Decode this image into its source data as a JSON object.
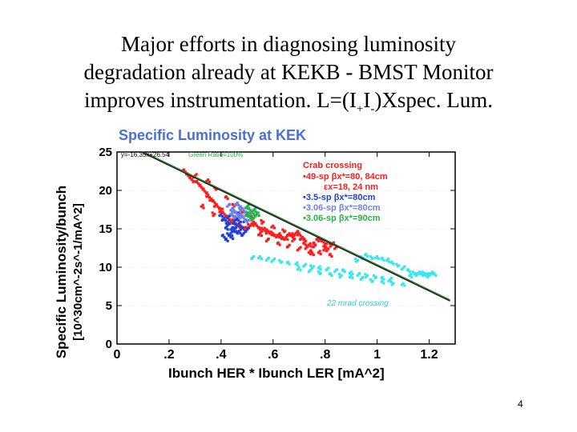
{
  "slide": {
    "title_line1": "Major efforts in diagnosing luminosity",
    "title_line2": "degradation already at KEKB - BMST Monitor",
    "title_line3_pre": "improves instrumentation. L=(I",
    "title_sub1": "+",
    "title_mid": "I",
    "title_sub2": "-",
    "title_line3_post": ")Xspec. Lum.",
    "page_number": "4"
  },
  "chart_data": {
    "type": "scatter",
    "title": "Specific Luminosity at KEK",
    "ylabel_line1": "Specific Luminosity/bunch",
    "ylabel_line2": "[10^30cm^-2s^-1/mA^2]",
    "xlabel": "Ibunch HER * Ibunch LER [mA^2]",
    "xlim": [
      0,
      1.3
    ],
    "ylim": [
      0,
      25
    ],
    "xticks": [
      "0",
      ".2",
      ".4",
      ".6",
      ".8",
      "1",
      "1.2"
    ],
    "xtick_values": [
      0,
      0.2,
      0.4,
      0.6,
      0.8,
      1.0,
      1.2
    ],
    "yticks": [
      "0",
      "5",
      "10",
      "15",
      "20",
      "25"
    ],
    "ytick_values": [
      0,
      5,
      10,
      15,
      20,
      25
    ],
    "fit": {
      "label": "y=-16.35x+26.54",
      "slope": -16.35,
      "intercept": 26.54,
      "x_range": [
        0.1,
        1.28
      ],
      "color": "#2e7d32"
    },
    "fit_ratio_label": "Green Ratio=100%",
    "legend": {
      "heading": "Crab crossing",
      "entries": [
        {
          "text": "•49-sp  βx*=80, 84cm",
          "color": "#ff1a1a"
        },
        {
          "text": "εx=18, 24 nm",
          "color": "#ff1a1a"
        },
        {
          "text": "•3.5-sp   βx*=80cm",
          "color": "#1f3fd9"
        },
        {
          "text": "•3.06-sp βx*=80cm",
          "color": "#6f7fe8"
        },
        {
          "text": "•3.06-sp βx*=90cm",
          "color": "#22b34a"
        }
      ]
    },
    "annotation": {
      "text": "22 mrad crossing",
      "color": "#33c8e0"
    },
    "series": [
      {
        "color": "#ff1a1a",
        "points": [
          [
            0.26,
            22.6
          ],
          [
            0.27,
            22.1
          ],
          [
            0.28,
            21.7
          ],
          [
            0.29,
            21.3
          ],
          [
            0.3,
            21.9
          ],
          [
            0.31,
            21.0
          ],
          [
            0.32,
            20.6
          ],
          [
            0.33,
            20.2
          ],
          [
            0.34,
            19.8
          ],
          [
            0.35,
            19.3
          ],
          [
            0.36,
            18.9
          ],
          [
            0.37,
            18.5
          ],
          [
            0.38,
            18.0
          ],
          [
            0.39,
            17.7
          ],
          [
            0.4,
            17.4
          ],
          [
            0.41,
            17.0
          ],
          [
            0.42,
            16.6
          ],
          [
            0.43,
            16.3
          ],
          [
            0.44,
            16.0
          ],
          [
            0.45,
            15.8
          ],
          [
            0.46,
            15.6
          ],
          [
            0.47,
            15.4
          ],
          [
            0.48,
            15.3
          ],
          [
            0.49,
            15.1
          ],
          [
            0.5,
            15.0
          ],
          [
            0.51,
            15.4
          ],
          [
            0.52,
            15.8
          ],
          [
            0.53,
            15.6
          ],
          [
            0.54,
            15.3
          ],
          [
            0.55,
            15.0
          ],
          [
            0.56,
            14.8
          ],
          [
            0.57,
            14.9
          ],
          [
            0.58,
            14.6
          ],
          [
            0.59,
            14.4
          ],
          [
            0.6,
            14.3
          ],
          [
            0.61,
            14.1
          ],
          [
            0.62,
            14.2
          ],
          [
            0.63,
            13.9
          ],
          [
            0.64,
            13.7
          ],
          [
            0.65,
            13.8
          ],
          [
            0.66,
            14.3
          ],
          [
            0.67,
            14.0
          ],
          [
            0.68,
            13.5
          ],
          [
            0.69,
            14.6
          ],
          [
            0.7,
            14.2
          ],
          [
            0.71,
            13.8
          ],
          [
            0.72,
            13.1
          ],
          [
            0.73,
            12.6
          ],
          [
            0.74,
            12.0
          ],
          [
            0.75,
            11.8
          ],
          [
            0.76,
            12.8
          ],
          [
            0.77,
            13.5
          ],
          [
            0.78,
            13.8
          ],
          [
            0.79,
            13.4
          ],
          [
            0.8,
            12.9
          ],
          [
            0.81,
            12.4
          ],
          [
            0.82,
            12.9
          ],
          [
            0.83,
            13.1
          ],
          [
            0.84,
            12.6
          ],
          [
            0.35,
            21.2
          ],
          [
            0.38,
            20.3
          ],
          [
            0.42,
            19.1
          ],
          [
            0.45,
            18.0
          ],
          [
            0.48,
            17.2
          ],
          [
            0.52,
            16.4
          ],
          [
            0.56,
            15.9
          ],
          [
            0.6,
            15.2
          ],
          [
            0.64,
            14.7
          ],
          [
            0.68,
            14.2
          ],
          [
            0.72,
            13.6
          ],
          [
            0.76,
            13.0
          ],
          [
            0.8,
            12.3
          ],
          [
            0.33,
            17.9
          ],
          [
            0.37,
            16.9
          ],
          [
            0.41,
            16.2
          ],
          [
            0.55,
            14.2
          ],
          [
            0.58,
            13.6
          ],
          [
            0.62,
            13.1
          ],
          [
            0.66,
            12.7
          ],
          [
            0.7,
            12.4
          ],
          [
            0.74,
            12.9
          ],
          [
            0.78,
            11.9
          ],
          [
            0.82,
            11.6
          ]
        ]
      },
      {
        "color": "#1f3fd9",
        "points": [
          [
            0.4,
            16.8
          ],
          [
            0.41,
            16.3
          ],
          [
            0.42,
            15.9
          ],
          [
            0.42,
            15.1
          ],
          [
            0.43,
            16.5
          ],
          [
            0.43,
            15.5
          ],
          [
            0.44,
            15.0
          ],
          [
            0.44,
            14.6
          ],
          [
            0.45,
            15.8
          ],
          [
            0.45,
            14.9
          ],
          [
            0.46,
            15.3
          ],
          [
            0.46,
            14.5
          ],
          [
            0.47,
            14.8
          ],
          [
            0.48,
            15.2
          ],
          [
            0.48,
            14.3
          ],
          [
            0.49,
            14.6
          ],
          [
            0.5,
            14.9
          ],
          [
            0.41,
            14.0
          ],
          [
            0.42,
            13.6
          ],
          [
            0.43,
            14.2
          ],
          [
            0.44,
            13.9
          ],
          [
            0.46,
            16.2
          ],
          [
            0.47,
            15.9
          ],
          [
            0.45,
            16.6
          ],
          [
            0.47,
            16.9
          ],
          [
            0.49,
            16.0
          ]
        ]
      },
      {
        "color": "#6f7fe8",
        "points": [
          [
            0.43,
            18.0
          ],
          [
            0.44,
            17.6
          ],
          [
            0.45,
            17.3
          ],
          [
            0.46,
            17.0
          ],
          [
            0.47,
            16.8
          ],
          [
            0.48,
            16.5
          ],
          [
            0.49,
            16.2
          ],
          [
            0.5,
            16.0
          ],
          [
            0.44,
            16.9
          ],
          [
            0.45,
            16.6
          ],
          [
            0.46,
            18.2
          ],
          [
            0.47,
            17.9
          ],
          [
            0.48,
            17.5
          ],
          [
            0.49,
            17.2
          ],
          [
            0.5,
            17.0
          ],
          [
            0.51,
            16.7
          ]
        ]
      },
      {
        "color": "#22b34a",
        "points": [
          [
            0.5,
            17.9
          ],
          [
            0.51,
            17.6
          ],
          [
            0.52,
            17.3
          ],
          [
            0.52,
            17.0
          ],
          [
            0.53,
            16.8
          ],
          [
            0.53,
            17.4
          ],
          [
            0.54,
            16.9
          ],
          [
            0.51,
            16.6
          ],
          [
            0.5,
            16.9
          ],
          [
            0.52,
            16.3
          ]
        ]
      },
      {
        "color": "#33e8ee",
        "points": [
          [
            0.52,
            11.3
          ],
          [
            0.55,
            11.2
          ],
          [
            0.58,
            11.0
          ],
          [
            0.6,
            10.9
          ],
          [
            0.63,
            10.7
          ],
          [
            0.66,
            10.5
          ],
          [
            0.69,
            10.4
          ],
          [
            0.72,
            10.2
          ],
          [
            0.75,
            10.1
          ],
          [
            0.78,
            9.9
          ],
          [
            0.81,
            9.8
          ],
          [
            0.84,
            9.6
          ],
          [
            0.87,
            9.5
          ],
          [
            0.9,
            9.3
          ],
          [
            0.93,
            9.1
          ],
          [
            0.96,
            8.9
          ],
          [
            0.99,
            8.8
          ],
          [
            1.02,
            8.6
          ],
          [
            1.05,
            8.4
          ],
          [
            0.7,
            9.7
          ],
          [
            0.74,
            9.5
          ],
          [
            0.78,
            9.3
          ],
          [
            0.82,
            9.1
          ],
          [
            0.86,
            8.9
          ],
          [
            0.9,
            8.7
          ],
          [
            0.94,
            8.5
          ],
          [
            0.98,
            8.3
          ],
          [
            1.02,
            8.1
          ],
          [
            1.06,
            7.9
          ],
          [
            1.1,
            7.8
          ],
          [
            1.14,
            9.3
          ],
          [
            1.15,
            9.1
          ],
          [
            1.16,
            9.2
          ],
          [
            1.17,
            9.0
          ],
          [
            1.18,
            9.3
          ],
          [
            1.19,
            9.1
          ],
          [
            1.2,
            8.9
          ],
          [
            1.21,
            9.2
          ],
          [
            1.22,
            9.0
          ],
          [
            1.13,
            8.9
          ],
          [
            1.12,
            9.6
          ],
          [
            1.1,
            9.9
          ],
          [
            1.08,
            10.3
          ],
          [
            1.06,
            10.6
          ],
          [
            1.04,
            10.9
          ],
          [
            1.02,
            11.1
          ],
          [
            1.0,
            11.3
          ],
          [
            0.98,
            11.2
          ],
          [
            0.96,
            11.5
          ],
          [
            0.94,
            11.2
          ],
          [
            0.92,
            10.9
          ]
        ]
      }
    ]
  }
}
